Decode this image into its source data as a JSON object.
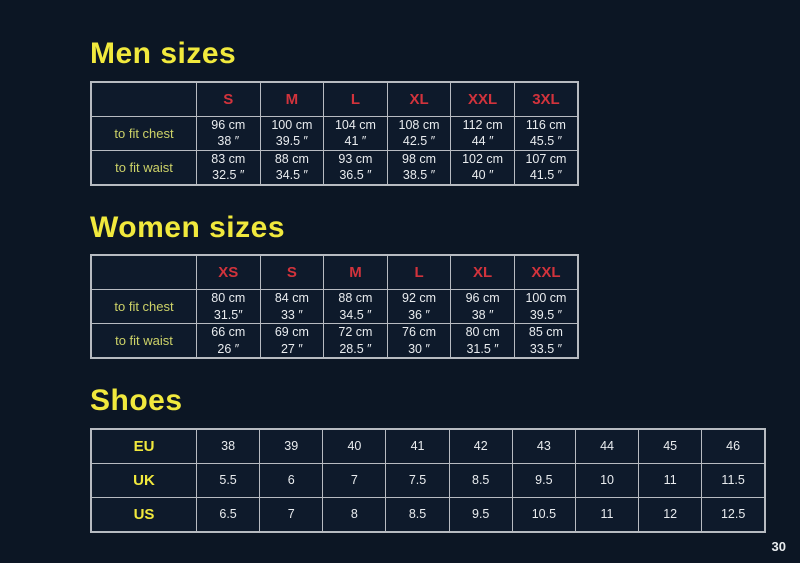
{
  "page": {
    "number": "30"
  },
  "colors": {
    "background": "#0c1624",
    "table_background": "#0e1a2b",
    "heading_yellow": "#f1e93d",
    "row_label_yellow": "#cdd268",
    "size_header_red": "#d2333c",
    "cell_text": "#e9ecef",
    "table_border": "#b7bbc1"
  },
  "sections": [
    {
      "id": "men",
      "title": "Men sizes",
      "table": {
        "header": [
          "",
          "S",
          "M",
          "L",
          "XL",
          "XXL",
          "3XL"
        ],
        "rows": [
          {
            "label": "to fit chest",
            "cells": [
              [
                "96 cm",
                "38 ″"
              ],
              [
                "100 cm",
                "39.5 ″"
              ],
              [
                "104 cm",
                "41 ″"
              ],
              [
                "108 cm",
                "42.5 ″"
              ],
              [
                "112 cm",
                "44 ″"
              ],
              [
                "116 cm",
                "45.5 ″"
              ]
            ]
          },
          {
            "label": "to fit waist",
            "cells": [
              [
                "83 cm",
                "32.5 ″"
              ],
              [
                "88 cm",
                "34.5 ″"
              ],
              [
                "93 cm",
                "36.5 ″"
              ],
              [
                "98 cm",
                "38.5 ″"
              ],
              [
                "102 cm",
                "40 ″"
              ],
              [
                "107 cm",
                "41.5 ″"
              ]
            ]
          }
        ]
      }
    },
    {
      "id": "women",
      "title": "Women sizes",
      "table": {
        "header": [
          "",
          "XS",
          "S",
          "M",
          "L",
          "XL",
          "XXL"
        ],
        "rows": [
          {
            "label": "to fit chest",
            "cells": [
              [
                "80 cm",
                "31.5″"
              ],
              [
                "84 cm",
                "33 ″"
              ],
              [
                "88 cm",
                "34.5 ″"
              ],
              [
                "92 cm",
                "36 ″"
              ],
              [
                "96 cm",
                "38 ″"
              ],
              [
                "100 cm",
                "39.5 ″"
              ]
            ]
          },
          {
            "label": "to fit waist",
            "cells": [
              [
                "66 cm",
                "26 ″"
              ],
              [
                "69 cm",
                "27 ″"
              ],
              [
                "72 cm",
                "28.5 ″"
              ],
              [
                "76 cm",
                "30 ″"
              ],
              [
                "80 cm",
                "31.5 ″"
              ],
              [
                "85 cm",
                "33.5 ″"
              ]
            ]
          }
        ]
      }
    },
    {
      "id": "shoes",
      "title": "Shoes",
      "table": {
        "header": null,
        "rows": [
          {
            "label": "EU",
            "cells": [
              [
                "38"
              ],
              [
                "39"
              ],
              [
                "40"
              ],
              [
                "41"
              ],
              [
                "42"
              ],
              [
                "43"
              ],
              [
                "44"
              ],
              [
                "45"
              ],
              [
                "46"
              ]
            ]
          },
          {
            "label": "UK",
            "cells": [
              [
                "5.5"
              ],
              [
                "6"
              ],
              [
                "7"
              ],
              [
                "7.5"
              ],
              [
                "8.5"
              ],
              [
                "9.5"
              ],
              [
                "10"
              ],
              [
                "11"
              ],
              [
                "11.5"
              ]
            ]
          },
          {
            "label": "US",
            "cells": [
              [
                "6.5"
              ],
              [
                "7"
              ],
              [
                "8"
              ],
              [
                "8.5"
              ],
              [
                "9.5"
              ],
              [
                "10.5"
              ],
              [
                "11"
              ],
              [
                "12"
              ],
              [
                "12.5"
              ]
            ]
          }
        ]
      }
    }
  ]
}
